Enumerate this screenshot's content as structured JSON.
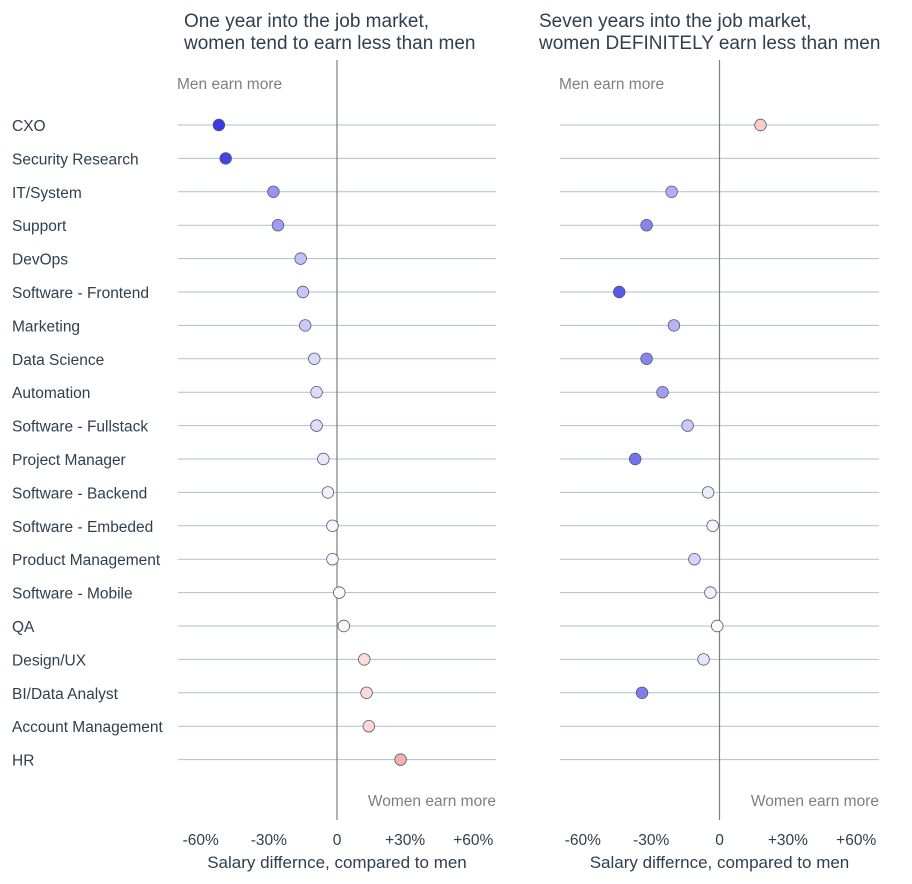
{
  "chart_data": {
    "type": "scatter",
    "categories": [
      "CXO",
      "Security Research",
      "IT/System",
      "Support",
      "DevOps",
      "Software - Frontend",
      "Marketing",
      "Data Science",
      "Automation",
      "Software - Fullstack",
      "Project Manager",
      "Software - Backend",
      "Software - Embeded",
      "Product Management",
      "Software - Mobile",
      "QA",
      "Design/UX",
      "BI/Data Analyst",
      "Account Management",
      "HR"
    ],
    "xlim": [
      -70,
      70
    ],
    "xticks": [
      -60,
      -30,
      0,
      30,
      60
    ],
    "xtick_labels": [
      "-60%",
      "-30%",
      "0",
      "+30%",
      "+60%"
    ],
    "xlabel": "Salary differnce, compared to men",
    "color_scale": {
      "negative": "#3a3ae6",
      "neutral": "#ffffff",
      "positive": "#ee6a6a",
      "max_abs": 52
    },
    "panels": [
      {
        "title_lines": [
          "One year into the job market,",
          "women tend to earn less than men"
        ],
        "annotation_top": "Men earn more",
        "annotation_bottom": "Women earn more",
        "values": [
          -52,
          -49,
          -28,
          -26,
          -16,
          -15,
          -14,
          -10,
          -9,
          -9,
          -6,
          -4,
          -2,
          -2,
          1,
          3,
          12,
          13,
          14,
          28
        ]
      },
      {
        "title_lines": [
          "Seven years into the job market,",
          "women DEFINITELY earn less than men"
        ],
        "annotation_top": "Men earn more",
        "annotation_bottom": "Women earn more",
        "values": [
          18,
          null,
          -21,
          -32,
          null,
          -44,
          -20,
          -32,
          -25,
          -14,
          -37,
          -5,
          -3,
          -11,
          -4,
          -1,
          -7,
          -34,
          null,
          null
        ]
      }
    ]
  }
}
